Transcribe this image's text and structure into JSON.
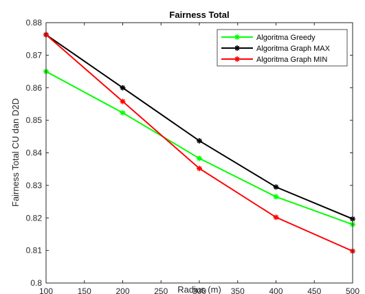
{
  "chart_data": {
    "type": "line",
    "title": "Fairness Total",
    "xlabel": "Radius (m)",
    "ylabel": "Fairness Total CU dan D2D",
    "xlim": [
      100,
      500
    ],
    "ylim": [
      0.8,
      0.88
    ],
    "xticks": [
      100,
      150,
      200,
      250,
      300,
      350,
      400,
      450,
      500
    ],
    "xtick_labels": [
      "100",
      "150",
      "200",
      "250",
      "300",
      "350",
      "400",
      "450",
      "500"
    ],
    "yticks": [
      0.8,
      0.81,
      0.82,
      0.83,
      0.84,
      0.85,
      0.86,
      0.87,
      0.88
    ],
    "ytick_labels": [
      "0.8",
      "0.81",
      "0.82",
      "0.83",
      "0.84",
      "0.85",
      "0.86",
      "0.87",
      "0.88"
    ],
    "grid": false,
    "legend_position": "top-right",
    "marker": "asterisk",
    "x": [
      100,
      200,
      300,
      400,
      500
    ],
    "series": [
      {
        "name": "Algoritma Greedy",
        "color": "#00ff00",
        "values": [
          0.865,
          0.8523,
          0.8383,
          0.8265,
          0.818
        ]
      },
      {
        "name": "Algoritma Graph MAX",
        "color": "#000000",
        "values": [
          0.8763,
          0.86,
          0.8437,
          0.8295,
          0.8197
        ]
      },
      {
        "name": "Algoritma Graph MIN",
        "color": "#ff0000",
        "values": [
          0.8763,
          0.8558,
          0.8352,
          0.8202,
          0.8098
        ]
      }
    ]
  }
}
